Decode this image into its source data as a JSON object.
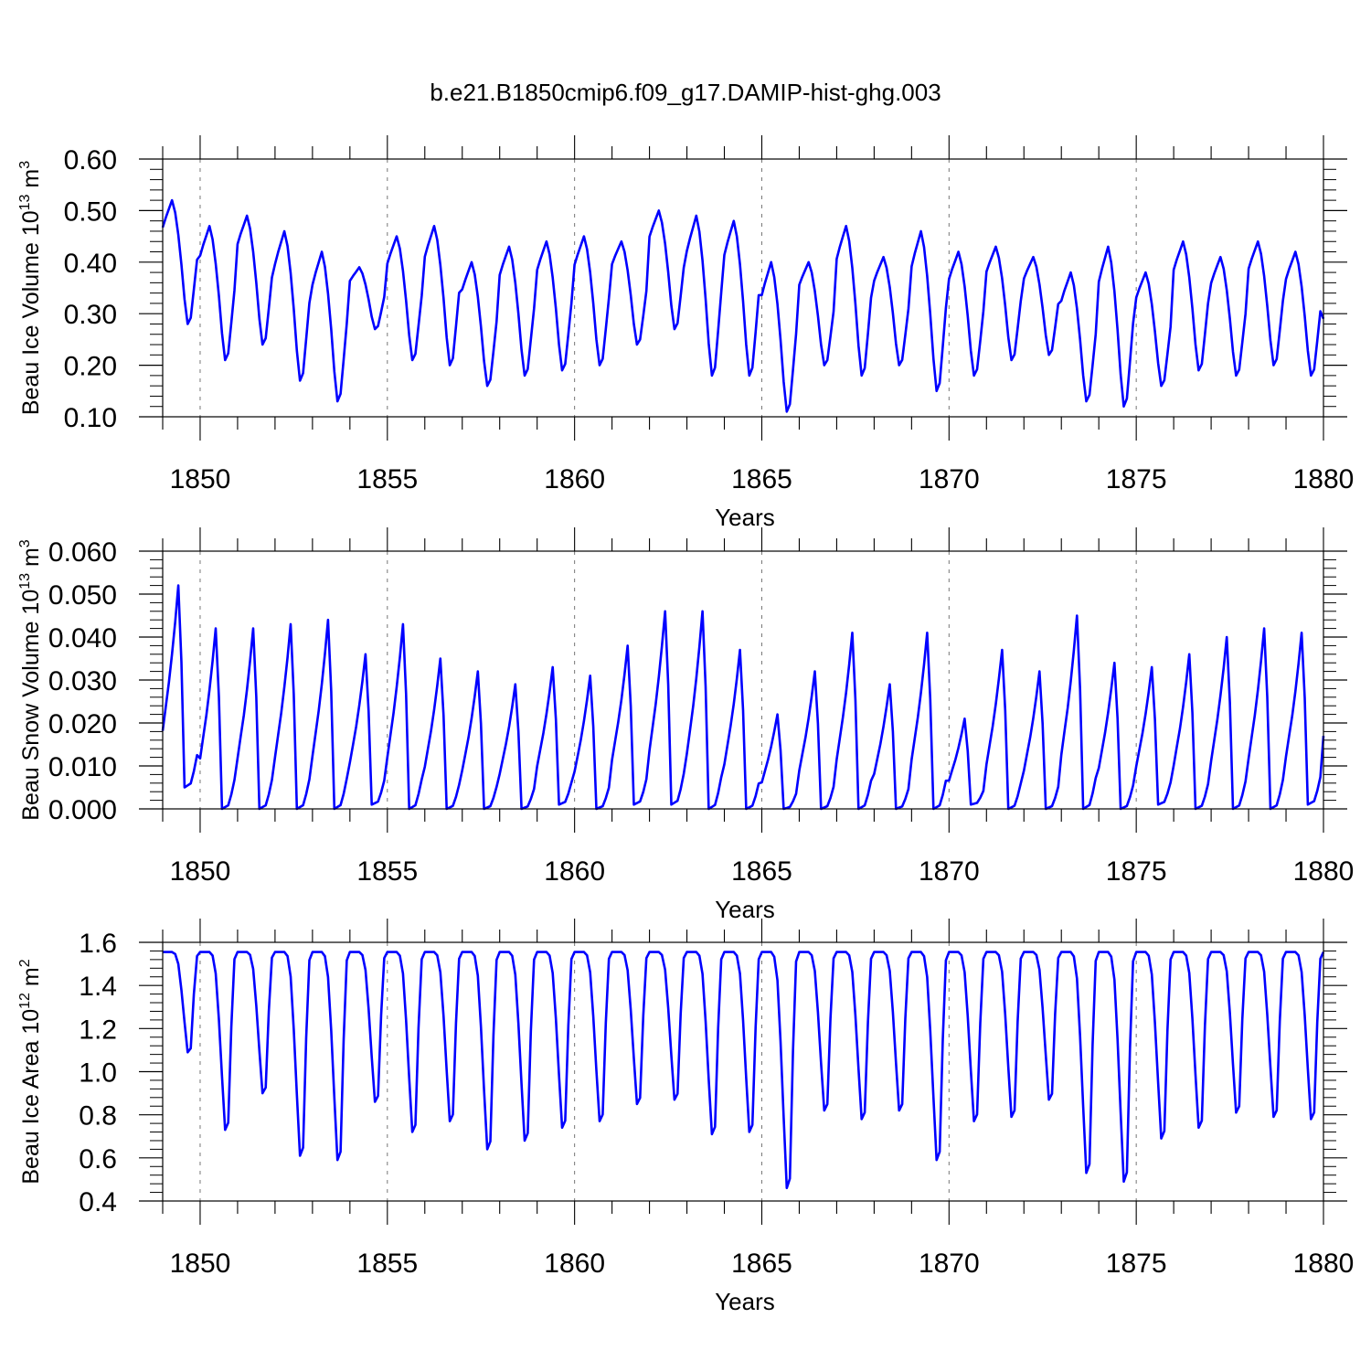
{
  "figure": {
    "title": "b.e21.B1850cmip6.f09_g17.DAMIP-hist-ghg.003"
  },
  "chart_data": [
    {
      "type": "line",
      "xlabel": "Years",
      "ylabel": "Beau Ice Volume 10",
      "ylabel_exp": "13",
      "ylabel_unit": " m",
      "ylabel_unit_exp": "3",
      "xlim": [
        1849,
        1880
      ],
      "ylim": [
        0.1,
        0.6
      ],
      "x_ticks": [
        "1850",
        "1855",
        "1860",
        "1865",
        "1870",
        "1875",
        "1880"
      ],
      "y_ticks": [
        "0.10",
        "0.20",
        "0.30",
        "0.40",
        "0.50",
        "0.60"
      ],
      "line_color": "#0000ff",
      "annual": [
        {
          "max": 0.52,
          "min": 0.28
        },
        {
          "max": 0.47,
          "min": 0.21
        },
        {
          "max": 0.49,
          "min": 0.24
        },
        {
          "max": 0.46,
          "min": 0.17
        },
        {
          "max": 0.42,
          "min": 0.13
        },
        {
          "max": 0.39,
          "min": 0.27
        },
        {
          "max": 0.45,
          "min": 0.21
        },
        {
          "max": 0.47,
          "min": 0.2
        },
        {
          "max": 0.4,
          "min": 0.16
        },
        {
          "max": 0.43,
          "min": 0.18
        },
        {
          "max": 0.44,
          "min": 0.19
        },
        {
          "max": 0.45,
          "min": 0.2
        },
        {
          "max": 0.44,
          "min": 0.24
        },
        {
          "max": 0.5,
          "min": 0.27
        },
        {
          "max": 0.49,
          "min": 0.18
        },
        {
          "max": 0.48,
          "min": 0.18
        },
        {
          "max": 0.4,
          "min": 0.11
        },
        {
          "max": 0.4,
          "min": 0.2
        },
        {
          "max": 0.47,
          "min": 0.18
        },
        {
          "max": 0.41,
          "min": 0.2
        },
        {
          "max": 0.46,
          "min": 0.15
        },
        {
          "max": 0.42,
          "min": 0.18
        },
        {
          "max": 0.43,
          "min": 0.21
        },
        {
          "max": 0.41,
          "min": 0.22
        },
        {
          "max": 0.38,
          "min": 0.13
        },
        {
          "max": 0.43,
          "min": 0.12
        },
        {
          "max": 0.38,
          "min": 0.16
        },
        {
          "max": 0.44,
          "min": 0.19
        },
        {
          "max": 0.41,
          "min": 0.18
        },
        {
          "max": 0.44,
          "min": 0.2
        },
        {
          "max": 0.42,
          "min": 0.18
        },
        {
          "max": 0.29,
          "min": 0.29
        }
      ]
    },
    {
      "type": "line",
      "xlabel": "Years",
      "ylabel": "Beau Snow Volume 10",
      "ylabel_exp": "13",
      "ylabel_unit": " m",
      "ylabel_unit_exp": "3",
      "xlim": [
        1849,
        1880
      ],
      "ylim": [
        0.0,
        0.06
      ],
      "x_ticks": [
        "1850",
        "1855",
        "1860",
        "1865",
        "1870",
        "1875",
        "1880"
      ],
      "y_ticks": [
        "0.000",
        "0.010",
        "0.020",
        "0.030",
        "0.040",
        "0.050",
        "0.060"
      ],
      "line_color": "#0000ff",
      "annual": [
        {
          "max": 0.052,
          "min": 0.005
        },
        {
          "max": 0.042,
          "min": 0.0
        },
        {
          "max": 0.042,
          "min": 0.0
        },
        {
          "max": 0.043,
          "min": 0.0
        },
        {
          "max": 0.044,
          "min": 0.0
        },
        {
          "max": 0.036,
          "min": 0.001
        },
        {
          "max": 0.043,
          "min": 0.0
        },
        {
          "max": 0.035,
          "min": 0.0
        },
        {
          "max": 0.032,
          "min": 0.0
        },
        {
          "max": 0.029,
          "min": 0.0
        },
        {
          "max": 0.033,
          "min": 0.001
        },
        {
          "max": 0.031,
          "min": 0.0
        },
        {
          "max": 0.038,
          "min": 0.001
        },
        {
          "max": 0.046,
          "min": 0.001
        },
        {
          "max": 0.046,
          "min": 0.0
        },
        {
          "max": 0.037,
          "min": 0.0
        },
        {
          "max": 0.022,
          "min": 0.0
        },
        {
          "max": 0.032,
          "min": 0.0
        },
        {
          "max": 0.041,
          "min": 0.0
        },
        {
          "max": 0.029,
          "min": 0.0
        },
        {
          "max": 0.041,
          "min": 0.0
        },
        {
          "max": 0.021,
          "min": 0.001
        },
        {
          "max": 0.037,
          "min": 0.0
        },
        {
          "max": 0.032,
          "min": 0.0
        },
        {
          "max": 0.045,
          "min": 0.0
        },
        {
          "max": 0.034,
          "min": 0.0
        },
        {
          "max": 0.033,
          "min": 0.001
        },
        {
          "max": 0.036,
          "min": 0.0
        },
        {
          "max": 0.04,
          "min": 0.0
        },
        {
          "max": 0.042,
          "min": 0.0
        },
        {
          "max": 0.041,
          "min": 0.001
        },
        {
          "max": 0.017,
          "min": 0.017
        }
      ]
    },
    {
      "type": "line",
      "xlabel": "Years",
      "ylabel": "Beau Ice Area 10",
      "ylabel_exp": "12",
      "ylabel_unit": " m",
      "ylabel_unit_exp": "2",
      "xlim": [
        1849,
        1880
      ],
      "ylim": [
        0.4,
        1.6
      ],
      "x_ticks": [
        "1850",
        "1855",
        "1860",
        "1865",
        "1870",
        "1875",
        "1880"
      ],
      "y_ticks": [
        "0.4",
        "0.6",
        "0.8",
        "1.0",
        "1.2",
        "1.4",
        "1.6"
      ],
      "line_color": "#0000ff",
      "annual": [
        {
          "max": 1.555,
          "min": 1.09
        },
        {
          "max": 1.555,
          "min": 0.73
        },
        {
          "max": 1.555,
          "min": 0.9
        },
        {
          "max": 1.555,
          "min": 0.61
        },
        {
          "max": 1.555,
          "min": 0.59
        },
        {
          "max": 1.555,
          "min": 0.86
        },
        {
          "max": 1.555,
          "min": 0.72
        },
        {
          "max": 1.555,
          "min": 0.77
        },
        {
          "max": 1.555,
          "min": 0.64
        },
        {
          "max": 1.555,
          "min": 0.68
        },
        {
          "max": 1.555,
          "min": 0.74
        },
        {
          "max": 1.555,
          "min": 0.77
        },
        {
          "max": 1.555,
          "min": 0.85
        },
        {
          "max": 1.555,
          "min": 0.87
        },
        {
          "max": 1.555,
          "min": 0.71
        },
        {
          "max": 1.555,
          "min": 0.72
        },
        {
          "max": 1.555,
          "min": 0.46
        },
        {
          "max": 1.555,
          "min": 0.82
        },
        {
          "max": 1.555,
          "min": 0.78
        },
        {
          "max": 1.555,
          "min": 0.82
        },
        {
          "max": 1.555,
          "min": 0.59
        },
        {
          "max": 1.555,
          "min": 0.77
        },
        {
          "max": 1.555,
          "min": 0.79
        },
        {
          "max": 1.555,
          "min": 0.87
        },
        {
          "max": 1.555,
          "min": 0.53
        },
        {
          "max": 1.555,
          "min": 0.49
        },
        {
          "max": 1.555,
          "min": 0.69
        },
        {
          "max": 1.555,
          "min": 0.74
        },
        {
          "max": 1.555,
          "min": 0.81
        },
        {
          "max": 1.555,
          "min": 0.79
        },
        {
          "max": 1.555,
          "min": 0.78
        },
        {
          "max": 1.555,
          "min": 1.555
        }
      ]
    }
  ]
}
